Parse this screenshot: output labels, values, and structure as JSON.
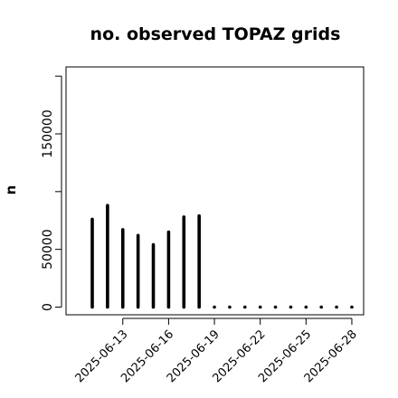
{
  "chart_data": {
    "type": "bar",
    "title": "no. observed TOPAZ grids",
    "ylabel": "n",
    "xlabel": "",
    "ylim": [
      -12000,
      205000
    ],
    "yticks": [
      0,
      50000,
      100000,
      150000
    ],
    "ytick_labels": [
      "0",
      "50000",
      "",
      "150000"
    ],
    "categories": [
      "2025-06-11",
      "2025-06-12",
      "2025-06-13",
      "2025-06-14",
      "2025-06-15",
      "2025-06-16",
      "2025-06-17",
      "2025-06-18",
      "2025-06-19",
      "2025-06-20",
      "2025-06-21",
      "2025-06-22",
      "2025-06-23",
      "2025-06-24",
      "2025-06-25",
      "2025-06-26",
      "2025-06-27",
      "2025-06-28"
    ],
    "values": [
      76000,
      88000,
      67000,
      62000,
      54000,
      65000,
      78000,
      79000,
      0,
      0,
      0,
      0,
      0,
      0,
      0,
      0,
      0,
      0
    ],
    "xtick_labels": [
      "2025-06-13",
      "2025-06-16",
      "2025-06-19",
      "2025-06-22",
      "2025-06-25",
      "2025-06-28"
    ],
    "xtick_positions": [
      2,
      5,
      8,
      11,
      14,
      17
    ],
    "highlight_tick": "2025-06-19",
    "colors": {
      "bar": "#000000",
      "highlight_tick": "#228B22",
      "tick_text": "#000000"
    },
    "grid": false,
    "legend": "none"
  }
}
